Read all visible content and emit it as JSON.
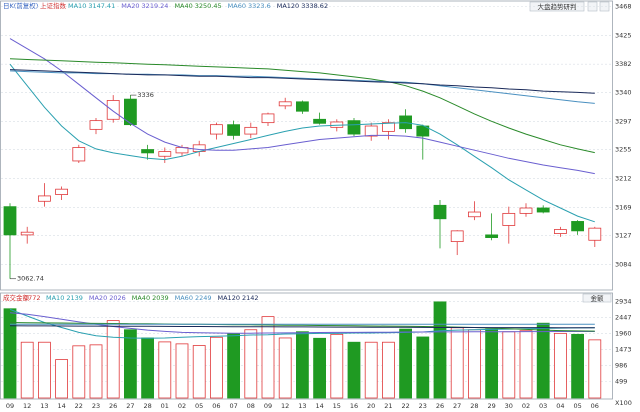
{
  "chart_data": [
    {
      "type": "candlestick",
      "subtitle": "日K(前复权)",
      "title": "上证指数",
      "button": "大盘趋势研判",
      "categories": [
        "09",
        "12",
        "13",
        "14",
        "22",
        "23",
        "26",
        "27",
        "28",
        "01",
        "02",
        "05",
        "06",
        "07",
        "08",
        "09",
        "12",
        "13",
        "14",
        "15",
        "16",
        "20",
        "21",
        "22",
        "23",
        "26",
        "27",
        "28",
        "29",
        "30",
        "02",
        "03",
        "04",
        "05",
        "06"
      ],
      "open": [
        3170,
        3128,
        3178,
        3188,
        3238,
        3285,
        3300,
        3330,
        3255,
        3245,
        3250,
        3252,
        3278,
        3292,
        3278,
        3295,
        3320,
        3326,
        3300,
        3288,
        3298,
        3275,
        3282,
        3305,
        3290,
        3172,
        3118,
        3155,
        3128,
        3142,
        3160,
        3168,
        3130,
        3148,
        3120
      ],
      "high": [
        3175,
        3140,
        3205,
        3200,
        3262,
        3302,
        3335.99,
        3336,
        3262,
        3258,
        3262,
        3268,
        3295,
        3298,
        3295,
        3310,
        3332,
        3328,
        3310,
        3300,
        3302,
        3295,
        3300,
        3315,
        3292,
        3180,
        3135,
        3178,
        3160,
        3170,
        3175,
        3172,
        3140,
        3150,
        3140
      ],
      "low": [
        3062.74,
        3115,
        3170,
        3180,
        3235,
        3278,
        3295,
        3290,
        3240,
        3235,
        3245,
        3245,
        3270,
        3270,
        3272,
        3290,
        3315,
        3308,
        3292,
        3282,
        3275,
        3268,
        3270,
        3280,
        3240,
        3108,
        3098,
        3150,
        3120,
        3115,
        3155,
        3160,
        3125,
        3128,
        3110
      ],
      "close": [
        3128,
        3132,
        3186,
        3196,
        3258,
        3298,
        3328,
        3292,
        3250,
        3252,
        3258,
        3262,
        3292,
        3276,
        3288,
        3308,
        3326,
        3312,
        3294,
        3296,
        3278,
        3290,
        3295,
        3286,
        3275,
        3152,
        3134,
        3162,
        3124,
        3160,
        3168,
        3162,
        3136,
        3134,
        3138
      ],
      "up_color": "#e0383a",
      "down_color": "#1f9a22",
      "series": [
        {
          "name": "MA10",
          "color": "#2aa0b0",
          "values": [
            3382,
            3350,
            3318,
            3290,
            3268,
            3256,
            3250,
            3246,
            3242,
            3240,
            3245,
            3252,
            3258,
            3264,
            3270,
            3276,
            3282,
            3287,
            3290,
            3291,
            3292,
            3293,
            3294,
            3295,
            3291,
            3278,
            3262,
            3245,
            3228,
            3210,
            3195,
            3180,
            3168,
            3156,
            3147.41
          ]
        },
        {
          "name": "MA20",
          "color": "#6a5fd0",
          "values": [
            3420,
            3405,
            3390,
            3372,
            3352,
            3332,
            3312,
            3294,
            3278,
            3266,
            3258,
            3255,
            3254,
            3254,
            3256,
            3258,
            3262,
            3266,
            3270,
            3272,
            3274,
            3276,
            3276,
            3275,
            3272,
            3266,
            3260,
            3254,
            3248,
            3242,
            3237,
            3232,
            3228,
            3224,
            3219.24
          ]
        },
        {
          "name": "MA40",
          "color": "#2a8a2a",
          "values": [
            3390,
            3389,
            3388,
            3387,
            3386,
            3385,
            3384,
            3383,
            3382,
            3381,
            3380,
            3379,
            3378,
            3377,
            3376,
            3375,
            3373,
            3371,
            3369,
            3366,
            3363,
            3360,
            3356,
            3350,
            3342,
            3332,
            3320,
            3308,
            3297,
            3287,
            3278,
            3270,
            3262,
            3256,
            3250.45
          ]
        },
        {
          "name": "MA60",
          "color": "#4a90c0",
          "values": [
            3372,
            3371,
            3370,
            3369,
            3369,
            3368,
            3368,
            3367,
            3367,
            3366,
            3366,
            3365,
            3365,
            3364,
            3364,
            3363,
            3362,
            3361,
            3360,
            3359,
            3358,
            3357,
            3356,
            3355,
            3353,
            3350,
            3347,
            3344,
            3341,
            3338,
            3335,
            3332,
            3329,
            3326,
            3323.6
          ]
        },
        {
          "name": "MA120",
          "color": "#1a2a5a",
          "values": [
            3374,
            3373,
            3372,
            3371,
            3370,
            3369,
            3368,
            3367,
            3366,
            3366,
            3365,
            3364,
            3364,
            3363,
            3362,
            3362,
            3361,
            3360,
            3359,
            3358,
            3357,
            3356,
            3355,
            3354,
            3353,
            3351,
            3350,
            3348,
            3347,
            3345,
            3344,
            3342,
            3341,
            3340,
            3338.62
          ]
        }
      ],
      "ylim": [
        3046,
        3476
      ],
      "yticks": [
        3468,
        3425,
        3382,
        3340,
        3297,
        3255,
        3212,
        3169,
        3127,
        3084
      ],
      "grid": true
    },
    {
      "type": "bar",
      "title": "成交金额",
      "button": "金额",
      "y_unit_label": "X100",
      "values": [
        2720,
        1700,
        1700,
        1170,
        1590,
        1620,
        2360,
        2080,
        1830,
        1710,
        1650,
        1600,
        1850,
        1960,
        2080,
        2480,
        1830,
        2020,
        1820,
        1940,
        1700,
        1700,
        1700,
        2100,
        1860,
        2930,
        2140,
        2080,
        2100,
        2020,
        2050,
        2280,
        1970,
        1940,
        1772
      ],
      "series": [
        {
          "name": "MA10",
          "color": "#2aa0b0",
          "values": [
            2700,
            2500,
            2300,
            2150,
            2000,
            1900,
            1850,
            1830,
            1820,
            1830,
            1850,
            1870,
            1880,
            1900,
            1920,
            1930,
            1950,
            1960,
            1970,
            1970,
            1980,
            1980,
            1990,
            2000,
            2010,
            2050,
            2070,
            2080,
            2090,
            2100,
            2110,
            2120,
            2130,
            2135,
            2139
          ]
        },
        {
          "name": "MA20",
          "color": "#6a5fd0",
          "values": [
            2600,
            2550,
            2480,
            2400,
            2320,
            2250,
            2180,
            2120,
            2070,
            2030,
            2000,
            1990,
            1980,
            1975,
            1975,
            1980,
            1985,
            1990,
            1995,
            2000,
            2000,
            2005,
            2005,
            2010,
            2010,
            2015,
            2015,
            2020,
            2020,
            2022,
            2024,
            2025,
            2026,
            2026,
            2026
          ]
        },
        {
          "name": "MA40",
          "color": "#2a8a2a",
          "values": [
            2300,
            2295,
            2290,
            2285,
            2280,
            2275,
            2270,
            2265,
            2260,
            2255,
            2250,
            2245,
            2240,
            2235,
            2230,
            2225,
            2220,
            2215,
            2210,
            2205,
            2200,
            2195,
            2190,
            2185,
            2180,
            2170,
            2160,
            2150,
            2130,
            2110,
            2090,
            2070,
            2055,
            2045,
            2039
          ]
        },
        {
          "name": "MA60",
          "color": "#4a90c0",
          "values": [
            2250,
            2250,
            2250,
            2250,
            2250,
            2250,
            2250,
            2250,
            2250,
            2250,
            2250,
            2250,
            2250,
            2250,
            2250,
            2250,
            2250,
            2250,
            2250,
            2250,
            2250,
            2250,
            2250,
            2250,
            2250,
            2250,
            2250,
            2250,
            2250,
            2250,
            2250,
            2250,
            2250,
            2250,
            2249
          ]
        },
        {
          "name": "MA120",
          "color": "#1a2a5a",
          "values": [
            2200,
            2198,
            2196,
            2194,
            2192,
            2190,
            2188,
            2186,
            2184,
            2182,
            2180,
            2178,
            2176,
            2174,
            2172,
            2170,
            2168,
            2166,
            2164,
            2162,
            2160,
            2158,
            2156,
            2154,
            2152,
            2150,
            2149,
            2148,
            2147,
            2146,
            2145,
            2144,
            2143,
            2142,
            2142
          ]
        }
      ],
      "ylim": [
        0,
        3200
      ],
      "yticks": [
        499,
        986,
        1473,
        1960,
        2447,
        2934
      ],
      "grid": true
    }
  ]
}
